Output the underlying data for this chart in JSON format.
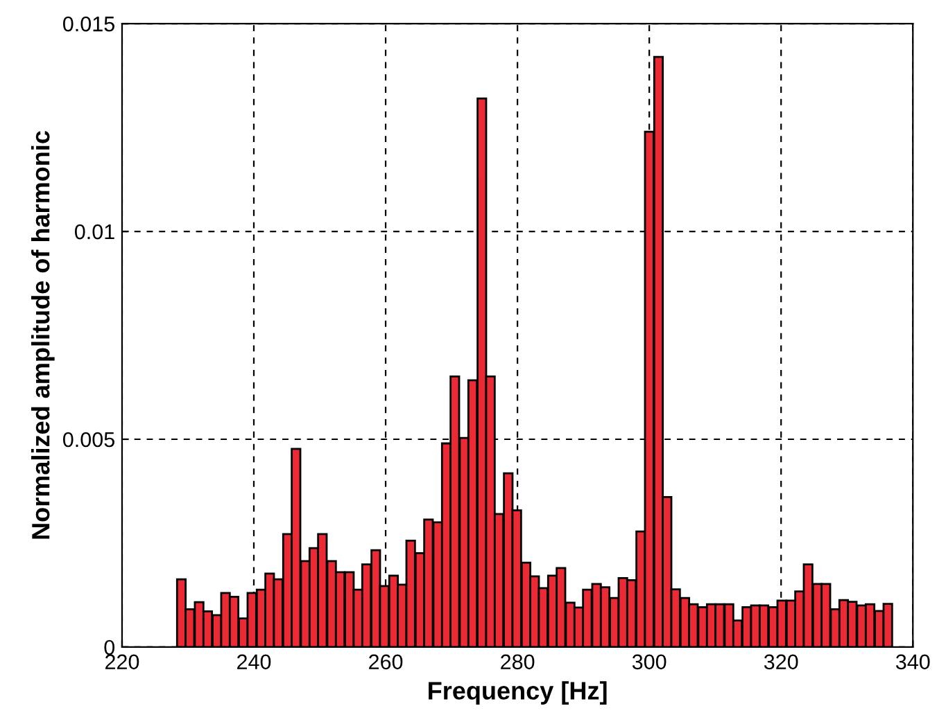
{
  "chart_data": {
    "type": "bar",
    "xlabel": "Frequency [Hz]",
    "ylabel": "Normalized amplitude of harmonic",
    "x": [
      229.0,
      230.3,
      231.7,
      233.0,
      234.4,
      235.7,
      237.0,
      238.4,
      239.7,
      241.1,
      242.4,
      243.7,
      245.1,
      246.4,
      247.8,
      249.1,
      250.4,
      251.8,
      253.1,
      254.5,
      255.8,
      257.1,
      258.5,
      259.8,
      261.2,
      262.5,
      263.8,
      265.2,
      266.5,
      267.9,
      269.2,
      270.5,
      271.9,
      273.2,
      274.6,
      275.9,
      277.2,
      278.6,
      279.9,
      281.3,
      282.6,
      283.9,
      285.3,
      286.6,
      288.0,
      289.3,
      290.6,
      292.0,
      293.3,
      294.7,
      296.0,
      297.3,
      298.7,
      300.0,
      301.4,
      302.7,
      304.0,
      305.4,
      306.7,
      308.1,
      309.4,
      310.7,
      312.1,
      313.4,
      314.8,
      316.1,
      317.4,
      318.8,
      320.1,
      321.5,
      322.8,
      324.1,
      325.5,
      326.8,
      328.2,
      329.5,
      330.8,
      332.2,
      333.5,
      334.9,
      336.2
    ],
    "values": [
      0.00163,
      0.00091,
      0.00108,
      0.00086,
      0.00077,
      0.0013,
      0.00121,
      0.00069,
      0.0013,
      0.00138,
      0.00177,
      0.00163,
      0.00272,
      0.00477,
      0.00207,
      0.00238,
      0.00272,
      0.00207,
      0.0018,
      0.0018,
      0.00138,
      0.00199,
      0.00233,
      0.00147,
      0.00172,
      0.0015,
      0.00256,
      0.00226,
      0.00307,
      0.003,
      0.0049,
      0.00651,
      0.00503,
      0.00642,
      0.0132,
      0.00651,
      0.0032,
      0.00418,
      0.00329,
      0.00203,
      0.0017,
      0.00142,
      0.00172,
      0.0019,
      0.00107,
      0.00095,
      0.00138,
      0.00152,
      0.00144,
      0.00118,
      0.00166,
      0.00161,
      0.00278,
      0.0124,
      0.0142,
      0.00361,
      0.00139,
      0.00118,
      0.00103,
      0.00096,
      0.00103,
      0.00103,
      0.00103,
      0.00064,
      0.00096,
      0.001,
      0.001,
      0.00096,
      0.00112,
      0.00112,
      0.00134,
      0.00199,
      0.00152,
      0.00152,
      0.00091,
      0.00113,
      0.00109,
      0.001,
      0.00103,
      0.00087,
      0.00104
    ],
    "color": "#ec2a35",
    "xlim": [
      220,
      340
    ],
    "xticks": [
      220,
      240,
      260,
      280,
      300,
      320,
      340
    ],
    "ylim": [
      0,
      0.015
    ],
    "yticks": [
      0,
      0.005,
      0.01,
      0.015
    ],
    "grid": true,
    "line_style": "dashed"
  }
}
